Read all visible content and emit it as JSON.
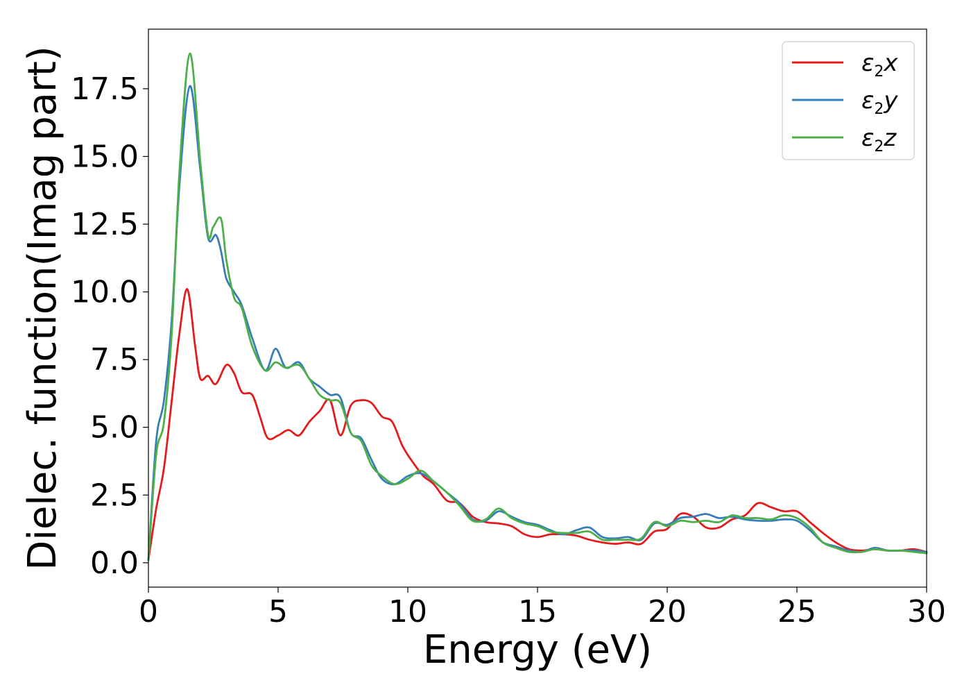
{
  "chart_data": {
    "type": "line",
    "xlabel": "Energy (eV)",
    "ylabel": "Dielec. function(Imag part)",
    "xlim": [
      0,
      30
    ],
    "ylim": [
      -0.9,
      19.7
    ],
    "x_ticks": [
      0,
      5,
      10,
      15,
      20,
      25,
      30
    ],
    "x_tick_labels": [
      "0",
      "5",
      "10",
      "15",
      "20",
      "25",
      "30"
    ],
    "y_ticks": [
      0.0,
      2.5,
      5.0,
      7.5,
      10.0,
      12.5,
      15.0,
      17.5
    ],
    "y_tick_labels": [
      "0.0",
      "2.5",
      "5.0",
      "7.5",
      "10.0",
      "12.5",
      "15.0",
      "17.5"
    ],
    "grid": false,
    "legend_position": "top-right",
    "series": [
      {
        "name": "ε2x",
        "legend_main": "ε",
        "legend_sub": "2",
        "legend_var": "x",
        "color": "#e41a1c",
        "x": [
          0,
          0.3,
          0.6,
          0.9,
          1.2,
          1.5,
          1.8,
          2.0,
          2.3,
          2.6,
          3.0,
          3.3,
          3.6,
          4.0,
          4.3,
          4.6,
          5.0,
          5.4,
          5.8,
          6.2,
          6.6,
          7.0,
          7.4,
          7.8,
          8.2,
          8.6,
          9.0,
          9.4,
          9.8,
          10.2,
          10.6,
          11.0,
          11.5,
          12.0,
          12.5,
          13.0,
          13.5,
          14.0,
          14.5,
          15.0,
          15.5,
          16.0,
          16.5,
          17.0,
          17.5,
          18.0,
          18.5,
          19.0,
          19.5,
          20.0,
          20.5,
          21.0,
          21.5,
          22.0,
          22.5,
          23.0,
          23.5,
          24.0,
          24.5,
          25.0,
          25.5,
          26.0,
          26.5,
          27.0,
          27.5,
          28.0,
          28.5,
          29.0,
          29.5,
          30.0
        ],
        "y": [
          0.1,
          2.0,
          3.5,
          6.0,
          8.5,
          10.1,
          8.0,
          6.8,
          6.9,
          6.6,
          7.3,
          7.0,
          6.3,
          6.2,
          5.4,
          4.6,
          4.7,
          4.9,
          4.7,
          5.2,
          5.6,
          6.0,
          4.7,
          5.8,
          6.0,
          5.9,
          5.4,
          5.2,
          4.3,
          3.7,
          3.2,
          2.9,
          2.3,
          2.2,
          1.7,
          1.5,
          1.45,
          1.35,
          1.05,
          0.95,
          1.05,
          1.05,
          1.0,
          0.85,
          0.75,
          0.7,
          0.75,
          0.7,
          1.15,
          1.25,
          1.8,
          1.7,
          1.3,
          1.3,
          1.6,
          1.75,
          2.2,
          2.05,
          1.9,
          1.9,
          1.5,
          1.1,
          0.75,
          0.5,
          0.45,
          0.5,
          0.45,
          0.45,
          0.5,
          0.4
        ]
      },
      {
        "name": "ε2y",
        "legend_main": "ε",
        "legend_sub": "2",
        "legend_var": "y",
        "color": "#377eb8",
        "x": [
          0,
          0.3,
          0.6,
          0.9,
          1.2,
          1.6,
          2.0,
          2.3,
          2.6,
          2.8,
          3.0,
          3.3,
          3.6,
          4.0,
          4.5,
          4.9,
          5.3,
          5.8,
          6.2,
          6.6,
          7.0,
          7.4,
          7.8,
          8.2,
          8.6,
          9.0,
          9.5,
          10.0,
          10.5,
          11.0,
          11.5,
          12.0,
          12.5,
          13.0,
          13.5,
          14.0,
          14.5,
          15.0,
          15.5,
          16.0,
          16.5,
          17.0,
          17.5,
          18.0,
          18.5,
          19.0,
          19.5,
          20.0,
          20.5,
          21.0,
          21.5,
          22.0,
          22.5,
          23.0,
          23.5,
          24.0,
          24.5,
          25.0,
          25.5,
          26.0,
          26.5,
          27.0,
          27.5,
          28.0,
          28.5,
          29.0,
          29.5,
          30.0
        ],
        "y": [
          0.1,
          4.5,
          6.0,
          9.0,
          14.0,
          17.6,
          14.5,
          12.0,
          12.1,
          11.5,
          10.5,
          10.0,
          9.5,
          8.3,
          7.1,
          7.9,
          7.2,
          7.4,
          6.8,
          6.5,
          6.2,
          6.1,
          4.8,
          4.6,
          3.8,
          3.1,
          2.9,
          3.2,
          3.3,
          3.0,
          2.6,
          2.2,
          1.6,
          1.55,
          1.9,
          1.7,
          1.5,
          1.4,
          1.2,
          1.05,
          1.2,
          1.3,
          0.95,
          0.9,
          0.95,
          0.85,
          1.45,
          1.4,
          1.65,
          1.7,
          1.8,
          1.65,
          1.7,
          1.6,
          1.55,
          1.55,
          1.6,
          1.55,
          1.2,
          0.75,
          0.6,
          0.45,
          0.4,
          0.55,
          0.45,
          0.45,
          0.45,
          0.4
        ]
      },
      {
        "name": "ε2z",
        "legend_main": "ε",
        "legend_sub": "2",
        "legend_var": "z",
        "color": "#4daf4a",
        "x": [
          0,
          0.3,
          0.6,
          0.9,
          1.2,
          1.6,
          2.0,
          2.3,
          2.5,
          2.8,
          3.0,
          3.3,
          3.6,
          4.0,
          4.5,
          4.9,
          5.3,
          5.8,
          6.2,
          6.6,
          7.0,
          7.4,
          7.8,
          8.2,
          8.6,
          9.0,
          9.5,
          10.0,
          10.5,
          11.0,
          11.5,
          12.0,
          12.5,
          13.0,
          13.5,
          14.0,
          14.5,
          15.0,
          15.5,
          16.0,
          16.5,
          17.0,
          17.5,
          18.0,
          18.5,
          19.0,
          19.5,
          20.0,
          20.5,
          21.0,
          21.5,
          22.0,
          22.5,
          23.0,
          23.5,
          24.0,
          24.5,
          25.0,
          25.5,
          26.0,
          26.5,
          27.0,
          27.5,
          28.0,
          28.5,
          29.0,
          29.5,
          30.0
        ],
        "y": [
          0.1,
          4.0,
          5.2,
          8.5,
          14.5,
          18.8,
          14.8,
          12.1,
          12.4,
          12.7,
          11.2,
          9.8,
          9.4,
          8.0,
          7.1,
          7.4,
          7.2,
          7.3,
          6.8,
          6.2,
          6.0,
          5.9,
          4.8,
          4.5,
          3.6,
          3.2,
          2.9,
          3.1,
          3.4,
          3.0,
          2.6,
          2.1,
          1.55,
          1.6,
          2.0,
          1.65,
          1.45,
          1.35,
          1.15,
          1.1,
          1.1,
          1.15,
          0.85,
          0.85,
          0.85,
          0.9,
          1.5,
          1.35,
          1.55,
          1.5,
          1.55,
          1.5,
          1.75,
          1.65,
          1.65,
          1.6,
          1.75,
          1.65,
          1.3,
          0.75,
          0.55,
          0.4,
          0.4,
          0.5,
          0.45,
          0.45,
          0.4,
          0.35
        ]
      }
    ]
  }
}
